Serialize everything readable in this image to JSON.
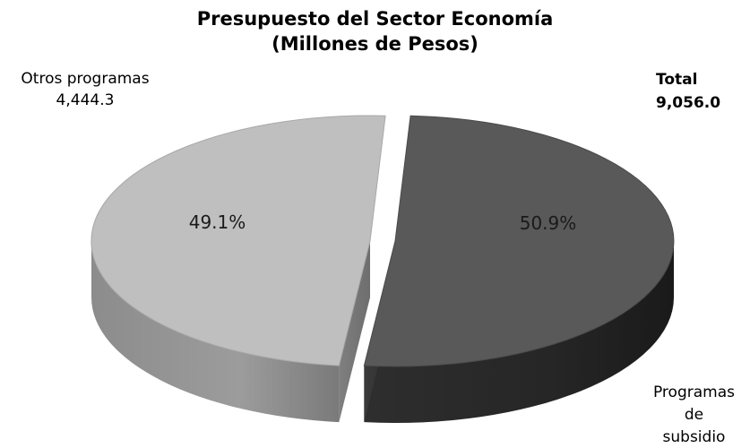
{
  "chart_data": {
    "type": "pie",
    "title": "Presupuesto del Sector Economía",
    "subtitle": "(Millones de Pesos)",
    "total_label": "Total",
    "total_value": "9,056.0",
    "slices": [
      {
        "name": "Programas de subsidio",
        "name_lines": [
          "Programas",
          "de",
          "subsidio"
        ],
        "percent": 50.9,
        "percent_label": "50.9%",
        "color": "#595959"
      },
      {
        "name": "Otros programas",
        "name_lines": [
          "Otros programas"
        ],
        "amount_label": "4,444.3",
        "percent": 49.1,
        "percent_label": "49.1%",
        "color": "#bfbfbf"
      }
    ],
    "style": "3d-exploded"
  }
}
